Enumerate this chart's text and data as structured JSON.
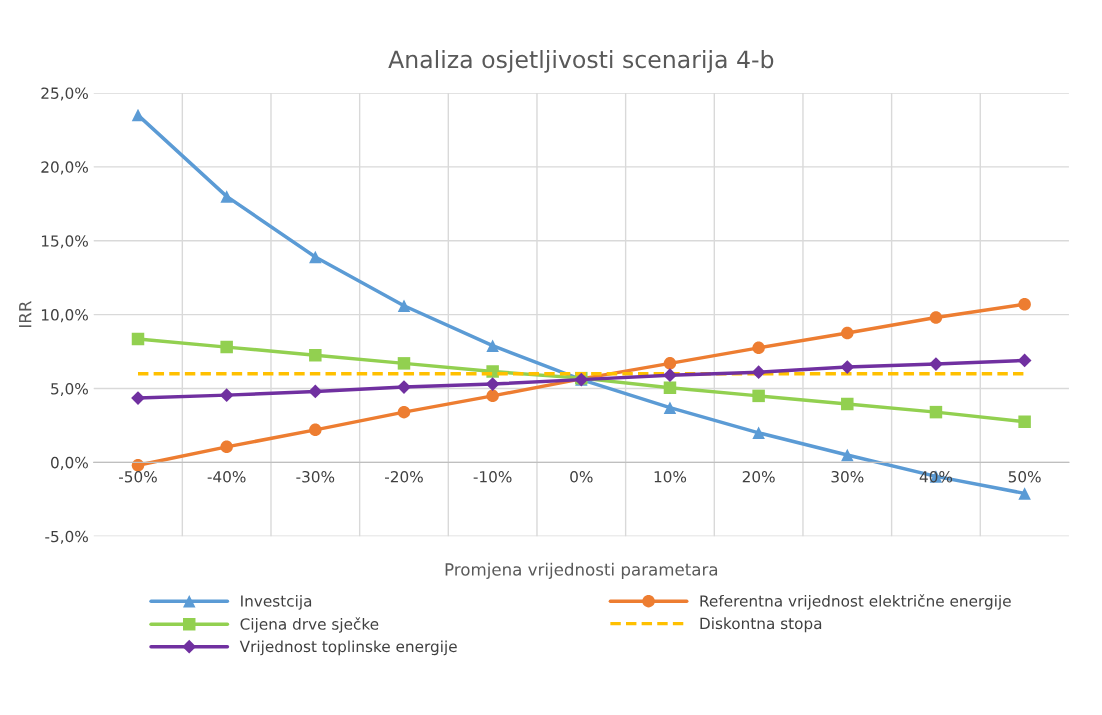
{
  "chart_data": {
    "type": "line",
    "title": "Analiza osjetljivosti scenarija 4-b",
    "xlabel": "Promjena vrijednosti parametara",
    "ylabel": "IRR",
    "categories": [
      "-50%",
      "-40%",
      "-30%",
      "-20%",
      "-10%",
      "0%",
      "10%",
      "20%",
      "30%",
      "40%",
      "50%"
    ],
    "ylim": [
      -5,
      25
    ],
    "yticks": [
      {
        "value": -5,
        "label": "-5,0%"
      },
      {
        "value": 0,
        "label": "0,0%"
      },
      {
        "value": 5,
        "label": "5,0%"
      },
      {
        "value": 10,
        "label": "10,0%"
      },
      {
        "value": 15,
        "label": "15,0%"
      },
      {
        "value": 20,
        "label": "20,0%"
      },
      {
        "value": 25,
        "label": "25,0%"
      }
    ],
    "grid": true,
    "legend": "bottom",
    "series": [
      {
        "name": "Investcija",
        "color": "#5b9bd5",
        "marker": "triangle",
        "line_style": "solid",
        "values": [
          23.5,
          18.0,
          13.9,
          10.6,
          7.9,
          5.6,
          3.7,
          2.0,
          0.5,
          -0.95,
          -2.1
        ]
      },
      {
        "name": "Referentna vrijednost električne energije",
        "color": "#ed7d31",
        "marker": "circle",
        "line_style": "solid",
        "values": [
          -0.2,
          1.05,
          2.2,
          3.4,
          4.5,
          5.65,
          6.7,
          7.75,
          8.75,
          9.8,
          10.7
        ]
      },
      {
        "name": "Cijena drve sječke",
        "color": "#92d050",
        "marker": "square",
        "line_style": "solid",
        "values": [
          8.35,
          7.8,
          7.25,
          6.7,
          6.15,
          5.7,
          5.05,
          4.5,
          3.95,
          3.4,
          2.75
        ]
      },
      {
        "name": "Diskontna stopa",
        "color": "#ffc000",
        "marker": "none",
        "line_style": "dashed",
        "values": [
          6,
          6,
          6,
          6,
          6,
          6,
          6,
          6,
          6,
          6,
          6
        ]
      },
      {
        "name": "Vrijednost toplinske energije",
        "color": "#7030a0",
        "marker": "diamond",
        "line_style": "solid",
        "values": [
          4.35,
          4.55,
          4.8,
          5.1,
          5.3,
          5.6,
          5.9,
          6.1,
          6.45,
          6.65,
          6.9
        ]
      }
    ]
  }
}
